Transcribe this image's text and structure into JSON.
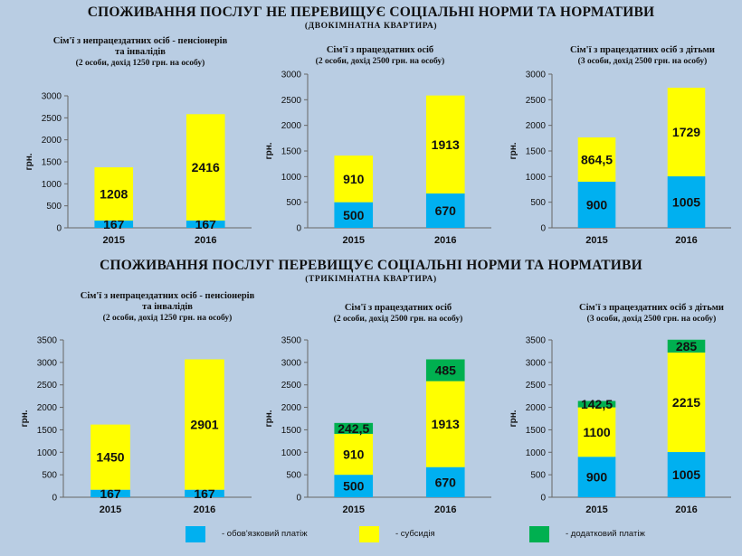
{
  "section1": {
    "title": "СПОЖИВАННЯ ПОСЛУГ НЕ ПЕРЕВИЩУЄ СОЦІАЛЬНІ НОРМИ ТА НОРМАТИВИ",
    "subtitle": "(ДВОКІМНАТНА  КВАРТИРА)"
  },
  "section2": {
    "title": "СПОЖИВАННЯ ПОСЛУГ ПЕРЕВИЩУЄ СОЦІАЛЬНІ НОРМИ ТА НОРМАТИВИ",
    "subtitle": "(ТРИКІМНАТНА  КВАРТИРА)"
  },
  "colors": {
    "mandatory": "#00b0f0",
    "subsidy": "#ffff00",
    "additional": "#00b050",
    "background": "#b9cde3"
  },
  "legend": {
    "mandatory": "- обов'язковий платіж",
    "subsidy": "- субсидія",
    "additional": "- додатковий платіж"
  },
  "chart_data": [
    {
      "type": "bar",
      "stacked": true,
      "title_line1": "Сім'ї з непрацездатних  осіб  - пенсіонерів",
      "title_line2": "та  інвалідів",
      "title_line3": "(2 особи, дохід 1250 грн. на особу)",
      "ylabel": "грн.",
      "ylim": [
        0,
        3000
      ],
      "yticks": [
        0,
        500,
        1000,
        1500,
        2000,
        2500,
        3000
      ],
      "categories": [
        "2015",
        "2016"
      ],
      "series": [
        {
          "key": "mandatory",
          "values": [
            167,
            167
          ],
          "labels": [
            "167",
            "167"
          ]
        },
        {
          "key": "subsidy",
          "values": [
            1208,
            2416
          ],
          "labels": [
            "1208",
            "2416"
          ]
        }
      ]
    },
    {
      "type": "bar",
      "stacked": true,
      "title_line1": "Сім'ї з працездатних   осіб",
      "title_line2": "(2 особи, дохід 2500 грн. на особу)",
      "ylabel": "грн.",
      "ylim": [
        0,
        3000
      ],
      "yticks": [
        0,
        500,
        1000,
        1500,
        2000,
        2500,
        3000
      ],
      "categories": [
        "2015",
        "2016"
      ],
      "series": [
        {
          "key": "mandatory",
          "values": [
            500,
            670
          ],
          "labels": [
            "500",
            "670"
          ]
        },
        {
          "key": "subsidy",
          "values": [
            910,
            1913
          ],
          "labels": [
            "910",
            "1913"
          ]
        }
      ]
    },
    {
      "type": "bar",
      "stacked": true,
      "title_line1": "Сім'ї з працездатних   осіб з дітьми",
      "title_line2": "(3 особи, дохід 2500 грн. на особу)",
      "ylabel": "грн.",
      "ylim": [
        0,
        3000
      ],
      "yticks": [
        0,
        500,
        1000,
        1500,
        2000,
        2500,
        3000
      ],
      "categories": [
        "2015",
        "2016"
      ],
      "series": [
        {
          "key": "mandatory",
          "values": [
            900,
            1005
          ],
          "labels": [
            "900",
            "1005"
          ]
        },
        {
          "key": "subsidy",
          "values": [
            864.5,
            1729
          ],
          "labels": [
            "864,5",
            "1729"
          ]
        }
      ]
    },
    {
      "type": "bar",
      "stacked": true,
      "title_line1": "Сім'ї з непрацездатних  осіб  - пенсіонерів",
      "title_line2": "та  інвалідів",
      "title_line3": "(2 особи, дохід 1250 грн. на особу)",
      "ylabel": "грн.",
      "ylim": [
        0,
        3500
      ],
      "yticks": [
        0,
        500,
        1000,
        1500,
        2000,
        2500,
        3000,
        3500
      ],
      "categories": [
        "2015",
        "2016"
      ],
      "series": [
        {
          "key": "mandatory",
          "values": [
            167,
            167
          ],
          "labels": [
            "167",
            "167"
          ]
        },
        {
          "key": "subsidy",
          "values": [
            1450,
            2901
          ],
          "labels": [
            "1450",
            "2901"
          ]
        }
      ]
    },
    {
      "type": "bar",
      "stacked": true,
      "title_line1": "Сім'ї з працездатних   осіб",
      "title_line2": "(2 особи, дохід 2500 грн. на особу)",
      "ylabel": "грн.",
      "ylim": [
        0,
        3500
      ],
      "yticks": [
        0,
        500,
        1000,
        1500,
        2000,
        2500,
        3000,
        3500
      ],
      "categories": [
        "2015",
        "2016"
      ],
      "series": [
        {
          "key": "mandatory",
          "values": [
            500,
            670
          ],
          "labels": [
            "500",
            "670"
          ]
        },
        {
          "key": "subsidy",
          "values": [
            910,
            1913
          ],
          "labels": [
            "910",
            "1913"
          ]
        },
        {
          "key": "additional",
          "values": [
            242.5,
            485
          ],
          "labels": [
            "242,5",
            "485"
          ]
        }
      ]
    },
    {
      "type": "bar",
      "stacked": true,
      "title_line1": "Сім'ї з працездатних   осіб з дітьми",
      "title_line2": "(3 особи, дохід 2500 грн. на особу)",
      "ylabel": "грн.",
      "ylim": [
        0,
        3500
      ],
      "yticks": [
        0,
        500,
        1000,
        1500,
        2000,
        2500,
        3000,
        3500
      ],
      "categories": [
        "2015",
        "2016"
      ],
      "series": [
        {
          "key": "mandatory",
          "values": [
            900,
            1005
          ],
          "labels": [
            "900",
            "1005"
          ]
        },
        {
          "key": "subsidy",
          "values": [
            1100,
            2215
          ],
          "labels": [
            "1100",
            "2215"
          ]
        },
        {
          "key": "additional",
          "values": [
            142.5,
            285
          ],
          "labels": [
            "142,5",
            "285"
          ]
        }
      ]
    }
  ]
}
